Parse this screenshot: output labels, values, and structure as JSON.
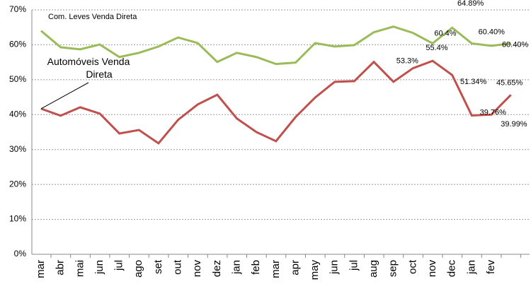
{
  "chart_data": {
    "type": "line",
    "categories": [
      "mar",
      "abr",
      "mai",
      "jun",
      "jul",
      "ago",
      "set",
      "out",
      "nov",
      "dez",
      "jan",
      "feb",
      "mar",
      "apr",
      "may",
      "jun",
      "jul",
      "aug",
      "sep",
      "oct",
      "nov",
      "dec",
      "jan",
      "fev",
      null
    ],
    "series": [
      {
        "name": "Com. Leves Venda Direta",
        "color": "#9bbb59",
        "values": [
          64.0,
          59.3,
          58.7,
          60.1,
          56.5,
          57.7,
          59.5,
          62.1,
          60.5,
          55.1,
          57.7,
          56.5,
          54.5,
          54.9,
          60.5,
          59.5,
          59.9,
          63.6,
          65.2,
          63.4,
          60.4,
          64.89,
          60.4,
          59.7,
          60.4
        ],
        "value_labels": [
          null,
          null,
          null,
          null,
          null,
          null,
          null,
          null,
          null,
          null,
          null,
          null,
          null,
          null,
          null,
          null,
          null,
          null,
          null,
          null,
          "60.4%",
          "64.89%",
          "60.40%",
          null,
          "60.40%"
        ]
      },
      {
        "name": "Automóveis Venda Direta",
        "color": "#c0504d",
        "values": [
          41.7,
          39.7,
          42.1,
          40.3,
          34.6,
          35.6,
          31.8,
          38.5,
          42.9,
          45.7,
          38.9,
          35.0,
          32.4,
          39.3,
          44.9,
          49.4,
          49.6,
          55.1,
          49.4,
          53.3,
          55.4,
          51.34,
          39.76,
          39.99,
          45.65
        ],
        "value_labels": [
          null,
          null,
          null,
          null,
          null,
          null,
          null,
          null,
          null,
          null,
          null,
          null,
          null,
          null,
          null,
          null,
          null,
          null,
          null,
          "53.3%",
          "55.4%",
          "51.34%",
          "39.76%",
          "39.99%",
          "45.65%"
        ]
      }
    ],
    "ylim": [
      0,
      70
    ],
    "yticks": [
      {
        "value": 0,
        "label": "0%"
      },
      {
        "value": 10,
        "label": "10%"
      },
      {
        "value": 20,
        "label": "20%"
      },
      {
        "value": 30,
        "label": "30%"
      },
      {
        "value": 40,
        "label": "40%"
      },
      {
        "value": 50,
        "label": "50%"
      },
      {
        "value": 60,
        "label": "60%"
      },
      {
        "value": 70,
        "label": "70%"
      }
    ],
    "grid": true
  }
}
